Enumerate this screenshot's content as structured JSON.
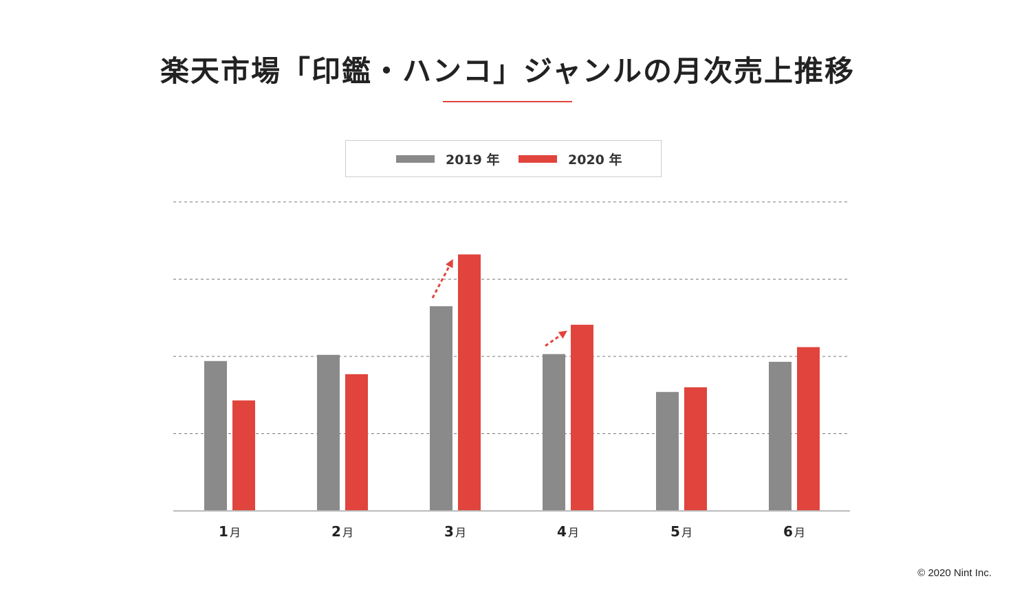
{
  "title": "楽天市場「印鑑・ハンコ」ジャンルの月次売上推移",
  "copyright": "© 2020 Nint Inc.",
  "colors": {
    "series_2019": "#8a8a8a",
    "series_2020": "#e0443c",
    "grid": "#777777",
    "axis": "#bbbbbb",
    "text": "#222222"
  },
  "chart_data": {
    "type": "bar",
    "title": "楽天市場「印鑑・ハンコ」ジャンルの月次売上推移",
    "categories": [
      {
        "num": "1",
        "unit": "月"
      },
      {
        "num": "2",
        "unit": "月"
      },
      {
        "num": "3",
        "unit": "月"
      },
      {
        "num": "4",
        "unit": "月"
      },
      {
        "num": "5",
        "unit": "月"
      },
      {
        "num": "6",
        "unit": "月"
      }
    ],
    "series": [
      {
        "name": "2019 年",
        "color": "#8a8a8a",
        "values": [
          1.94,
          2.02,
          2.65,
          2.03,
          1.54,
          1.93
        ]
      },
      {
        "name": "2020 年",
        "color": "#e0443c",
        "values": [
          1.43,
          1.77,
          3.32,
          2.41,
          1.6,
          2.12
        ]
      }
    ],
    "ylim": [
      0,
      4
    ],
    "grid": true,
    "y_tick_labels": false,
    "legend_position": "top-center",
    "annotations": [
      {
        "type": "dashed-arrow",
        "category_index": 2,
        "from_series": 0,
        "to_series": 1
      },
      {
        "type": "dashed-arrow",
        "category_index": 3,
        "from_series": 0,
        "to_series": 1
      }
    ]
  }
}
